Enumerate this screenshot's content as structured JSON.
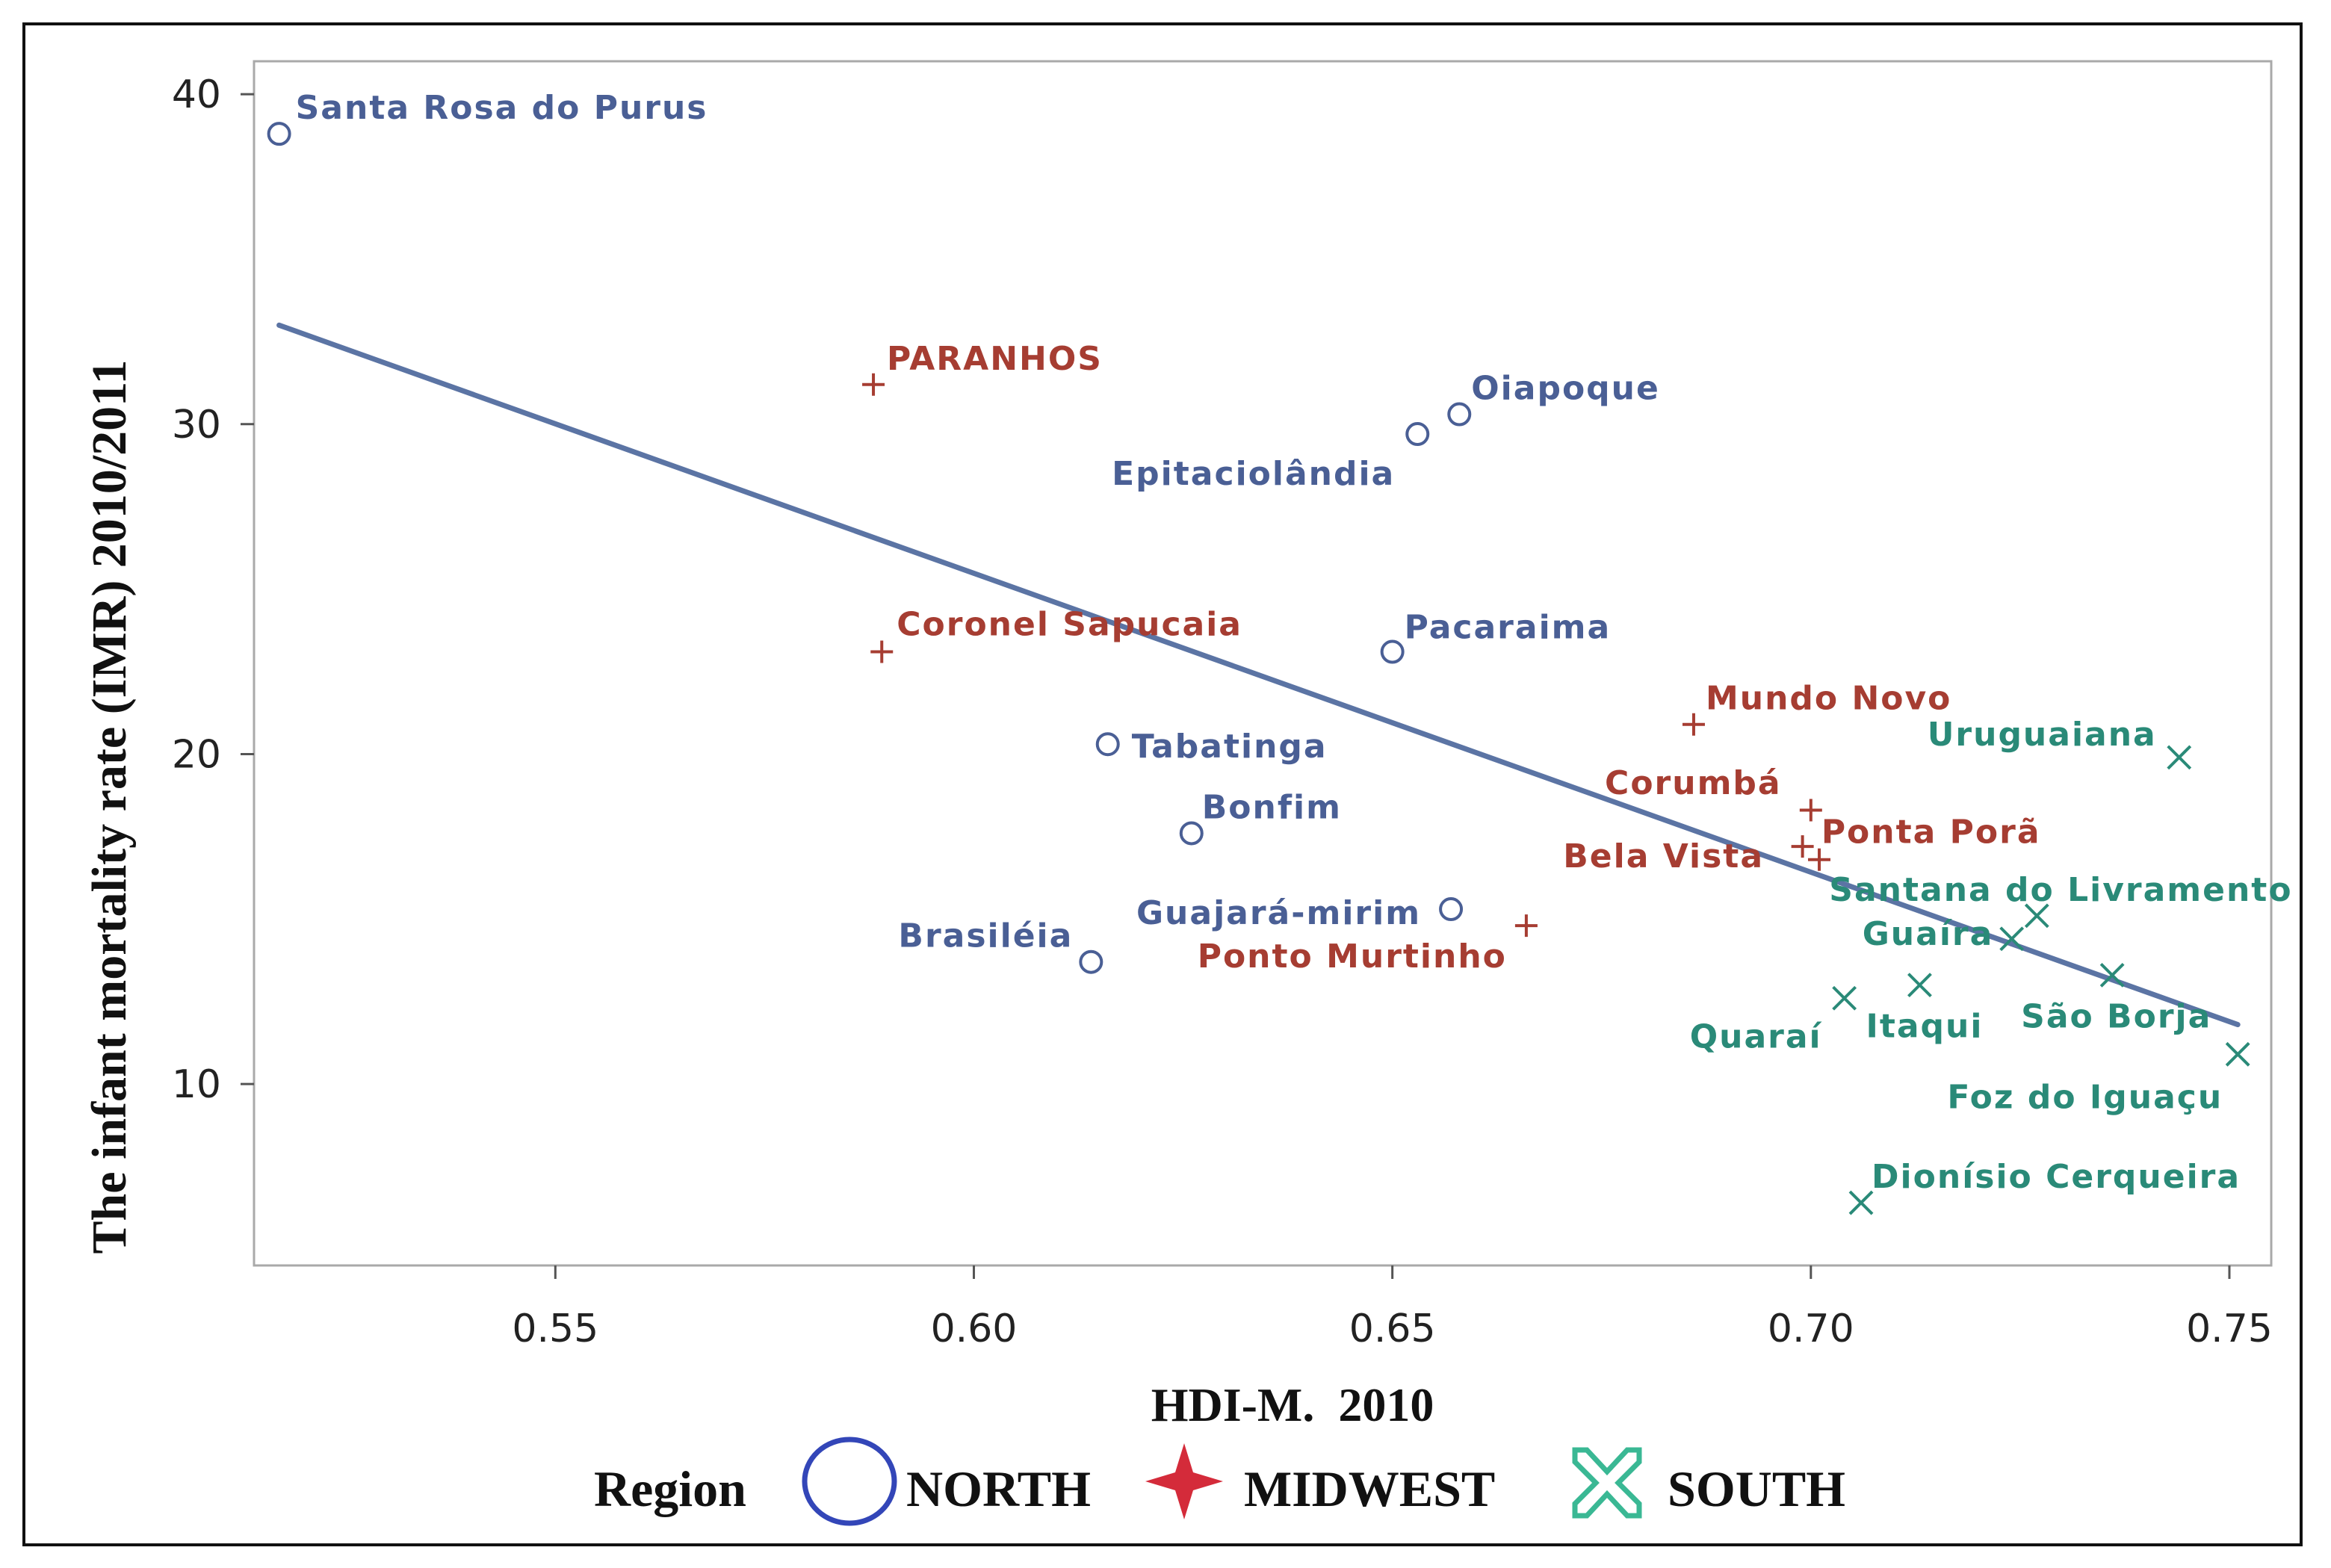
{
  "chart_data": {
    "type": "scatter",
    "title": "",
    "xlabel": "HDI-M.  2010",
    "ylabel": "The infant mortality rate (IMR) 2010/2011",
    "xlim": [
      0.514,
      0.755
    ],
    "ylim": [
      4.5,
      41.0
    ],
    "xticks": [
      0.55,
      0.6,
      0.65,
      0.7,
      0.75
    ],
    "xtick_labels": [
      "0.55",
      "0.60",
      "0.65",
      "0.70",
      "0.75"
    ],
    "yticks": [
      10,
      20,
      30,
      40
    ],
    "ytick_labels": [
      "10",
      "20",
      "30",
      "40"
    ],
    "grid": false,
    "legend": {
      "placement": "bottom",
      "title": "Region",
      "entries": [
        "NORTH",
        "MIDWEST",
        "SOUTH"
      ]
    },
    "colors": {
      "NORTH": "#4a5f95",
      "MIDWEST": "#a63d32",
      "SOUTH": "#2a8a78",
      "fit_line": "#5b74a4",
      "legend_north": "#3346b8",
      "legend_midwest": "#d42b3a",
      "legend_south": "#3ab894"
    },
    "fit_line": {
      "x": [
        0.517,
        0.751
      ],
      "y": [
        33.0,
        11.8
      ]
    },
    "series": [
      {
        "name": "NORTH",
        "marker": "circle",
        "points": [
          {
            "label": "Santa Rosa do Purus",
            "x": 0.517,
            "y": 38.8
          },
          {
            "label": "Oiapoque",
            "x": 0.658,
            "y": 30.3
          },
          {
            "label": "Epitaciolândia",
            "x": 0.653,
            "y": 29.7
          },
          {
            "label": "Pacaraima",
            "x": 0.65,
            "y": 23.1
          },
          {
            "label": "Tabatinga",
            "x": 0.616,
            "y": 20.3
          },
          {
            "label": "Bonfim",
            "x": 0.626,
            "y": 17.6
          },
          {
            "label": "Guajará-mirim",
            "x": 0.657,
            "y": 15.3
          },
          {
            "label": "Brasiléia",
            "x": 0.614,
            "y": 13.7
          }
        ]
      },
      {
        "name": "MIDWEST",
        "marker": "plus",
        "points": [
          {
            "label": "PARANHOS",
            "x": 0.588,
            "y": 31.2
          },
          {
            "label": "Coronel Sapucaia",
            "x": 0.589,
            "y": 23.1
          },
          {
            "label": "Mundo Novo",
            "x": 0.686,
            "y": 20.9
          },
          {
            "label": "Corumbá",
            "x": 0.699,
            "y": 17.2
          },
          {
            "label": "Ponta Porã",
            "x": 0.7,
            "y": 18.3
          },
          {
            "label": "Bela Vista",
            "x": 0.701,
            "y": 16.8
          },
          {
            "label": "Ponto Murtinho",
            "x": 0.666,
            "y": 14.8
          }
        ]
      },
      {
        "name": "SOUTH",
        "marker": "x",
        "points": [
          {
            "label": "Uruguaiana",
            "x": 0.744,
            "y": 19.9
          },
          {
            "label": "Santana do Livramento",
            "x": 0.727,
            "y": 15.1
          },
          {
            "label": "Guaíra",
            "x": 0.724,
            "y": 14.4
          },
          {
            "label": "São Borja",
            "x": 0.736,
            "y": 13.3
          },
          {
            "label": "Itaqui",
            "x": 0.713,
            "y": 13.0
          },
          {
            "label": "Quaraí",
            "x": 0.704,
            "y": 12.6
          },
          {
            "label": "Foz do Iguaçu",
            "x": 0.751,
            "y": 10.9
          },
          {
            "label": "Dionísio Cerqueira",
            "x": 0.706,
            "y": 6.4
          }
        ]
      }
    ]
  }
}
